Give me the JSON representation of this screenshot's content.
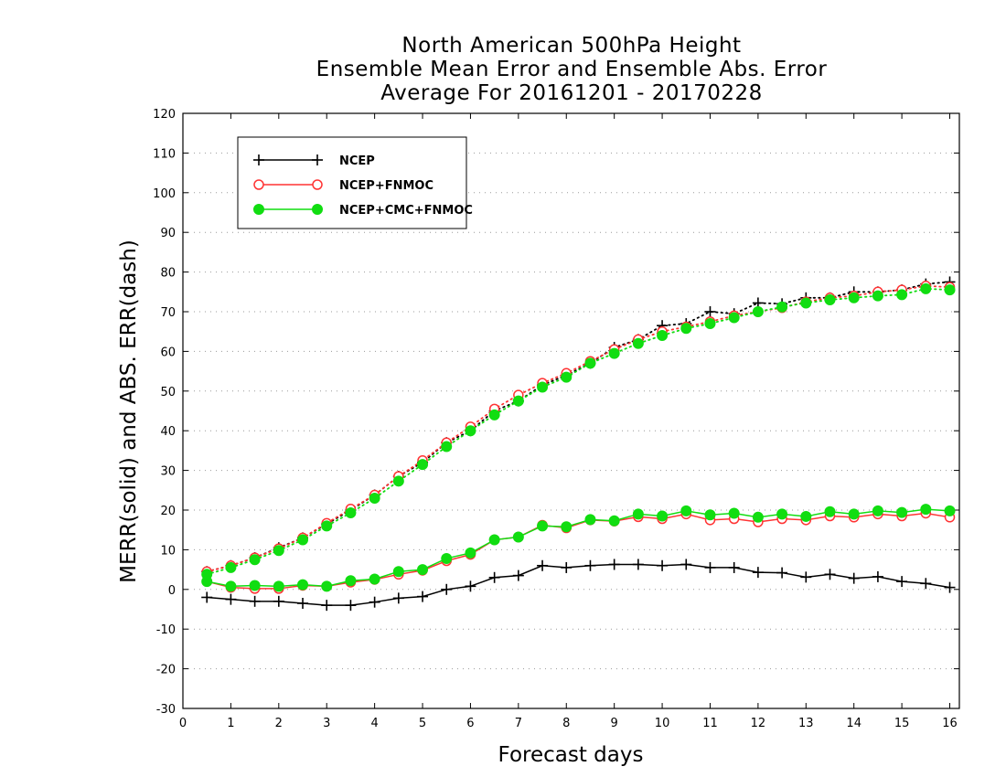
{
  "chart_data": {
    "type": "line",
    "title_lines": [
      "North American 500hPa Height",
      "Ensemble Mean Error and Ensemble Abs. Error",
      "Average For 20161201 - 20170228"
    ],
    "xlabel": "Forecast days",
    "ylabel": "MERR(solid) and ABS. ERR(dash)",
    "xlim": [
      0,
      16.2
    ],
    "ylim": [
      -30,
      120
    ],
    "x_ticks": [
      0,
      1,
      2,
      3,
      4,
      5,
      6,
      7,
      8,
      9,
      10,
      11,
      12,
      13,
      14,
      15,
      16
    ],
    "y_ticks": [
      -30,
      -20,
      -10,
      0,
      10,
      20,
      30,
      40,
      50,
      60,
      70,
      80,
      90,
      100,
      110,
      120
    ],
    "grid": "horizontal dotted",
    "legend_position": "top-left",
    "x": [
      0.5,
      1,
      1.5,
      2,
      2.5,
      3,
      3.5,
      4,
      4.5,
      5,
      5.5,
      6,
      6.5,
      7,
      7.5,
      8,
      8.5,
      9,
      9.5,
      10,
      10.5,
      11,
      11.5,
      12,
      12.5,
      13,
      13.5,
      14,
      14.5,
      15,
      15.5,
      16
    ],
    "series": [
      {
        "name": "NCEP",
        "color": "#000000",
        "marker": "plus",
        "merr": [
          -2,
          -2.5,
          -3,
          -3,
          -3.5,
          -4,
          -4,
          -3.2,
          -2.2,
          -1.8,
          0,
          0.8,
          3,
          3.5,
          6,
          5.5,
          6,
          6.3,
          6.3,
          6,
          6.3,
          5.5,
          5.5,
          4.3,
          4.2,
          3.1,
          3.8,
          2.8,
          3.2,
          2,
          1.5,
          0.5
        ],
        "abs_err": [
          4.5,
          6,
          8,
          10.5,
          13,
          16.5,
          20,
          23.8,
          28.5,
          32,
          37,
          40,
          45,
          47.5,
          51.5,
          54,
          57,
          61,
          63,
          66.5,
          67,
          70,
          69.5,
          72.2,
          72,
          73.5,
          73.5,
          75,
          75,
          75.5,
          77,
          77.5
        ]
      },
      {
        "name": "NCEP+FNMOC",
        "color": "#ff3333",
        "marker": "open-circle",
        "merr": [
          2,
          0.5,
          0.2,
          0.2,
          1,
          0.8,
          1.8,
          2.5,
          3.8,
          4.8,
          7.2,
          8.8,
          12.5,
          13.2,
          16.2,
          15.5,
          17.5,
          17.2,
          18.3,
          17.8,
          19,
          17.5,
          17.8,
          17,
          17.8,
          17.5,
          18.5,
          18.2,
          19,
          18.5,
          19.2,
          18.2
        ],
        "abs_err": [
          4.5,
          6,
          8,
          10.3,
          13,
          16.7,
          20.3,
          23.8,
          28.5,
          32.5,
          37,
          41,
          45.5,
          49,
          52,
          54.5,
          57.5,
          60.5,
          63,
          65,
          66.2,
          67.5,
          69,
          70,
          71,
          72.5,
          73.5,
          74,
          75,
          75.5,
          76.5,
          76.2
        ]
      },
      {
        "name": "NCEP+CMC+FNMOC",
        "color": "#11dd11",
        "marker": "filled-circle",
        "merr": [
          2,
          0.8,
          1,
          0.8,
          1.2,
          0.8,
          2.2,
          2.6,
          4.5,
          5,
          7.8,
          9.2,
          12.5,
          13.2,
          16,
          15.8,
          17.6,
          17.3,
          19,
          18.5,
          19.8,
          18.8,
          19.2,
          18.2,
          19,
          18.4,
          19.6,
          19,
          19.8,
          19.4,
          20.2,
          19.8
        ],
        "abs_err": [
          3.8,
          5.5,
          7.5,
          9.8,
          12.5,
          16,
          19.3,
          23,
          27.3,
          31.5,
          36,
          40,
          44,
          47.5,
          51,
          53.5,
          57,
          59.5,
          62,
          64,
          65.8,
          67,
          68.5,
          70,
          71.2,
          72.2,
          73,
          73.5,
          74,
          74.3,
          75.8,
          75.5
        ]
      }
    ]
  }
}
